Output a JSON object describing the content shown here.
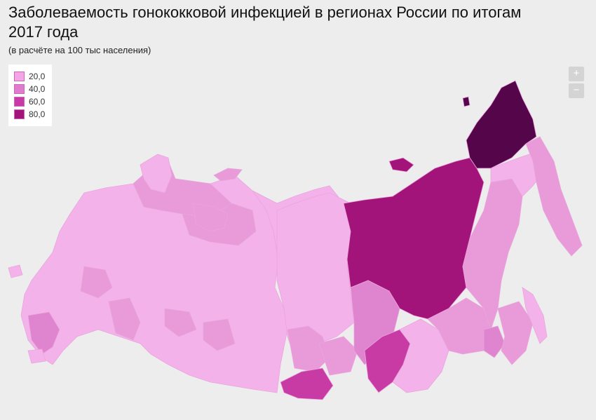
{
  "title": "Заболеваемость гонококковой инфекцией в регионах России по итогам 2017 года",
  "subtitle": "(в расчёте на 100 тыс населения)",
  "legend": {
    "items": [
      {
        "label": "20,0",
        "color": "#f2a6e6"
      },
      {
        "label": "40,0",
        "color": "#e07ccc"
      },
      {
        "label": "60,0",
        "color": "#c93aa6"
      },
      {
        "label": "80,0",
        "color": "#a3147a"
      }
    ]
  },
  "zoom": {
    "in_label": "+",
    "out_label": "−"
  },
  "colors": {
    "c20": "#f4b2ea",
    "c30": "#e99ad9",
    "c40": "#df84cf",
    "c60": "#c83aa4",
    "c80": "#a3147a",
    "c100": "#55054a"
  }
}
